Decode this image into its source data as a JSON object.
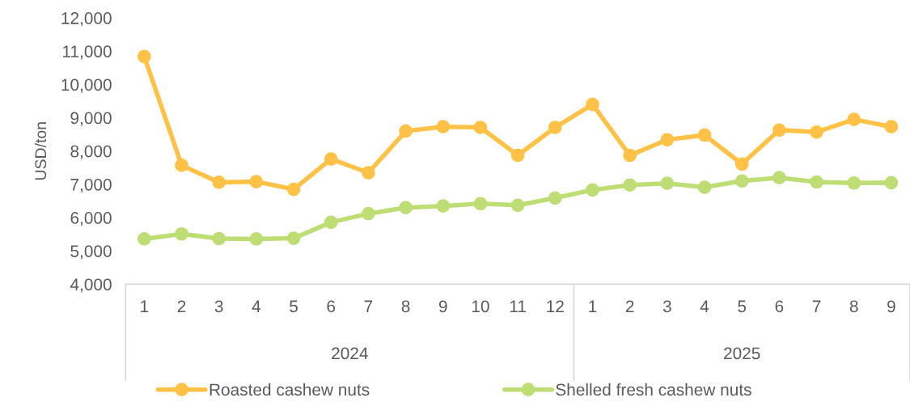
{
  "chart_data": {
    "type": "line",
    "ylabel": "USD/ton",
    "categories": [
      "1",
      "2",
      "3",
      "4",
      "5",
      "6",
      "7",
      "8",
      "9",
      "10",
      "11",
      "12",
      "1",
      "2",
      "3",
      "4",
      "5",
      "6",
      "7",
      "8",
      "9"
    ],
    "series": [
      {
        "name": "Roasted cashew nuts",
        "color": "#ffc246",
        "values": [
          10840,
          7570,
          7060,
          7080,
          6850,
          7760,
          7350,
          8600,
          8730,
          8710,
          7870,
          8710,
          9400,
          7870,
          8340,
          8480,
          7610,
          8630,
          8570,
          8950,
          8730
        ]
      },
      {
        "name": "Shelled fresh cashew nuts",
        "color": "#bedd74",
        "values": [
          5360,
          5510,
          5370,
          5360,
          5380,
          5860,
          6120,
          6300,
          6350,
          6420,
          6370,
          6590,
          6830,
          6980,
          7030,
          6910,
          7100,
          7200,
          7070,
          7040,
          7050
        ]
      }
    ],
    "ylim": [
      4000,
      12000
    ],
    "yticks": [
      {
        "value": 4000,
        "label": "4,000"
      },
      {
        "value": 5000,
        "label": "5,000"
      },
      {
        "value": 6000,
        "label": "6,000"
      },
      {
        "value": 7000,
        "label": "7,000"
      },
      {
        "value": 8000,
        "label": "8,000"
      },
      {
        "value": 9000,
        "label": "9,000"
      },
      {
        "value": 10000,
        "label": "10,000"
      },
      {
        "value": 11000,
        "label": "11,000"
      },
      {
        "value": 12000,
        "label": "12,000"
      }
    ],
    "annotations": [
      "2024",
      "2025"
    ],
    "grid": false,
    "legend": "bottom",
    "marker": "circle",
    "line_style": "solid"
  }
}
